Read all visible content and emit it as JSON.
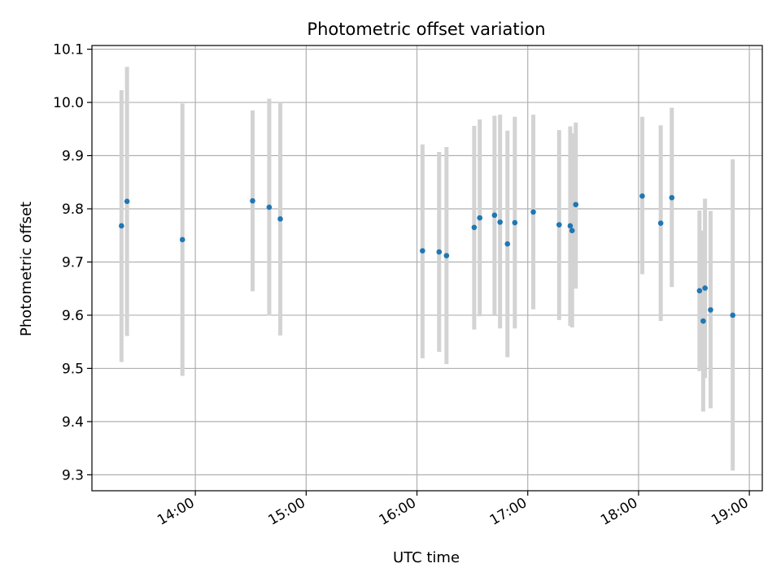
{
  "chart_data": {
    "type": "scatter",
    "title": "Photometric offset variation",
    "xlabel": "UTC time",
    "ylabel": "Photometric offset",
    "grid": true,
    "xlim": [
      "13:04",
      "19:07"
    ],
    "ylim": [
      9.27,
      10.107
    ],
    "x_ticks": [
      "14:00",
      "15:00",
      "16:00",
      "17:00",
      "18:00",
      "19:00"
    ],
    "y_ticks": [
      "9.3",
      "9.4",
      "9.5",
      "9.6",
      "9.7",
      "9.8",
      "9.9",
      "10.0",
      "10.1"
    ],
    "colors": {
      "points": "#1f77b4",
      "error_bars": "#d3d3d3",
      "grid": "#b0b0b0"
    },
    "points": [
      {
        "x": "13:20",
        "y": 9.768,
        "err_low": 9.512,
        "err_high": 10.023
      },
      {
        "x": "13:23",
        "y": 9.814,
        "err_low": 9.561,
        "err_high": 10.067
      },
      {
        "x": "13:53",
        "y": 9.742,
        "err_low": 9.486,
        "err_high": 9.998
      },
      {
        "x": "14:31",
        "y": 9.815,
        "err_low": 9.645,
        "err_high": 9.985
      },
      {
        "x": "14:40",
        "y": 9.803,
        "err_low": 9.599,
        "err_high": 10.007
      },
      {
        "x": "14:46",
        "y": 9.781,
        "err_low": 9.562,
        "err_high": 10.0
      },
      {
        "x": "16:03",
        "y": 9.721,
        "err_low": 9.519,
        "err_high": 9.921
      },
      {
        "x": "16:12",
        "y": 9.719,
        "err_low": 9.531,
        "err_high": 9.907
      },
      {
        "x": "16:16",
        "y": 9.712,
        "err_low": 9.508,
        "err_high": 9.916
      },
      {
        "x": "16:31",
        "y": 9.765,
        "err_low": 9.573,
        "err_high": 9.956
      },
      {
        "x": "16:34",
        "y": 9.783,
        "err_low": 9.598,
        "err_high": 9.968
      },
      {
        "x": "16:42",
        "y": 9.788,
        "err_low": 9.601,
        "err_high": 9.975
      },
      {
        "x": "16:45",
        "y": 9.775,
        "err_low": 9.575,
        "err_high": 9.977
      },
      {
        "x": "16:49",
        "y": 9.734,
        "err_low": 9.521,
        "err_high": 9.947
      },
      {
        "x": "16:53",
        "y": 9.774,
        "err_low": 9.575,
        "err_high": 9.973
      },
      {
        "x": "17:03",
        "y": 9.794,
        "err_low": 9.611,
        "err_high": 9.977
      },
      {
        "x": "17:17",
        "y": 9.77,
        "err_low": 9.591,
        "err_high": 9.948
      },
      {
        "x": "17:23",
        "y": 9.768,
        "err_low": 9.58,
        "err_high": 9.955
      },
      {
        "x": "17:24",
        "y": 9.759,
        "err_low": 9.577,
        "err_high": 9.942
      },
      {
        "x": "17:26",
        "y": 9.808,
        "err_low": 9.65,
        "err_high": 9.962
      },
      {
        "x": "18:02",
        "y": 9.824,
        "err_low": 9.677,
        "err_high": 9.973
      },
      {
        "x": "18:12",
        "y": 9.773,
        "err_low": 9.589,
        "err_high": 9.957
      },
      {
        "x": "18:18",
        "y": 9.821,
        "err_low": 9.653,
        "err_high": 9.99
      },
      {
        "x": "18:33",
        "y": 9.646,
        "err_low": 9.495,
        "err_high": 9.797
      },
      {
        "x": "18:35",
        "y": 9.589,
        "err_low": 9.419,
        "err_high": 9.759
      },
      {
        "x": "18:36",
        "y": 9.651,
        "err_low": 9.482,
        "err_high": 9.819
      },
      {
        "x": "18:39",
        "y": 9.61,
        "err_low": 9.425,
        "err_high": 9.796
      },
      {
        "x": "18:51",
        "y": 9.6,
        "err_low": 9.308,
        "err_high": 9.893
      }
    ]
  }
}
